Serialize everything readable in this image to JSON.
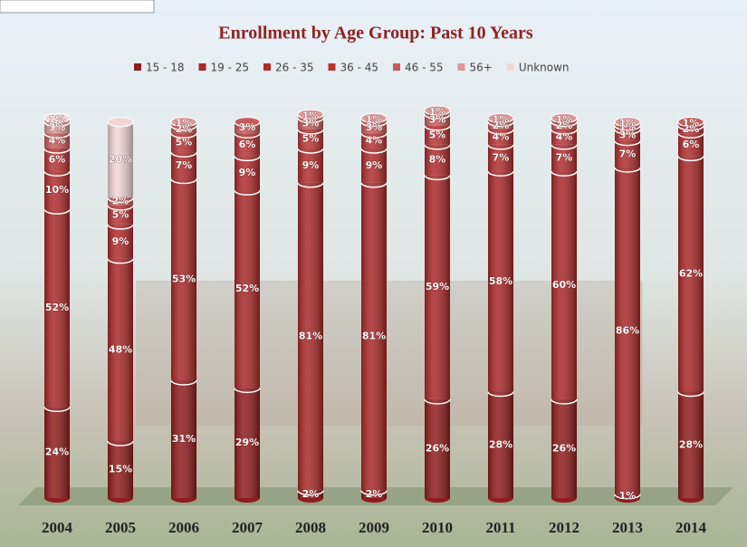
{
  "chart_data": {
    "type": "stacked-cylinder",
    "title": "Enrollment by Age Group: Past 10 Years",
    "categories": [
      "2004",
      "2005",
      "2006",
      "2007",
      "2008",
      "2009",
      "2010",
      "2011",
      "2012",
      "2013",
      "2014"
    ],
    "series": [
      {
        "name": "15 - 18",
        "color": "#8e1c1c",
        "values": [
          24,
          15,
          31,
          29,
          2,
          2,
          26,
          28,
          26,
          1,
          28
        ],
        "value_labels": [
          "24%",
          "15%",
          "31%",
          "29%",
          "2%",
          "2%",
          "26%",
          "28%",
          "26%",
          "1%",
          "28%"
        ]
      },
      {
        "name": "19 - 25",
        "color": "#a82828",
        "values": [
          52,
          48,
          53,
          52,
          81,
          81,
          59,
          58,
          60,
          86,
          62
        ],
        "value_labels": [
          "52%",
          "48%",
          "53%",
          "52%",
          "81%",
          "81%",
          "59%",
          "58%",
          "60%",
          "86%",
          "62%"
        ]
      },
      {
        "name": "26 - 35",
        "color": "#b02c2c",
        "values": [
          10,
          9,
          7,
          9,
          9,
          9,
          8,
          7,
          7,
          7,
          6
        ],
        "value_labels": [
          "10%",
          "9%",
          "7%",
          "9%",
          "9%",
          "9%",
          "8%",
          "7%",
          "7%",
          "7%",
          "6%"
        ]
      },
      {
        "name": "36 - 45",
        "color": "#b83434",
        "values": [
          6,
          5,
          5,
          6,
          5,
          4,
          5,
          4,
          4,
          3,
          2
        ],
        "value_labels": [
          "6%",
          "5%",
          "5%",
          "6%",
          "5%",
          "4%",
          "5%",
          "4%",
          "4%",
          "3%",
          "2%"
        ]
      },
      {
        "name": "46 - 55",
        "color": "#c85c5c",
        "values": [
          4,
          2,
          2,
          3,
          3,
          3,
          3,
          2,
          2,
          1,
          1
        ],
        "value_labels": [
          "4%",
          "2%",
          "2%",
          "3%",
          "3%",
          "3%",
          "3%",
          "2%",
          "2%",
          "1%",
          "1%"
        ]
      },
      {
        "name": "56+",
        "color": "#dc9a9a",
        "values": [
          3,
          null,
          1,
          null,
          1,
          1,
          1,
          1,
          1,
          1,
          null
        ],
        "value_labels": [
          "3%",
          null,
          "1%",
          null,
          "1%",
          "1%",
          "1%",
          "1%",
          "1%",
          "1%",
          null
        ]
      },
      {
        "name": "Unknown",
        "color": "#f2d6d6",
        "values": [
          1,
          20,
          null,
          null,
          null,
          null,
          null,
          null,
          null,
          null,
          null
        ],
        "value_labels": [
          "1%",
          "20%",
          null,
          null,
          null,
          null,
          null,
          null,
          null,
          null,
          null
        ]
      }
    ]
  }
}
